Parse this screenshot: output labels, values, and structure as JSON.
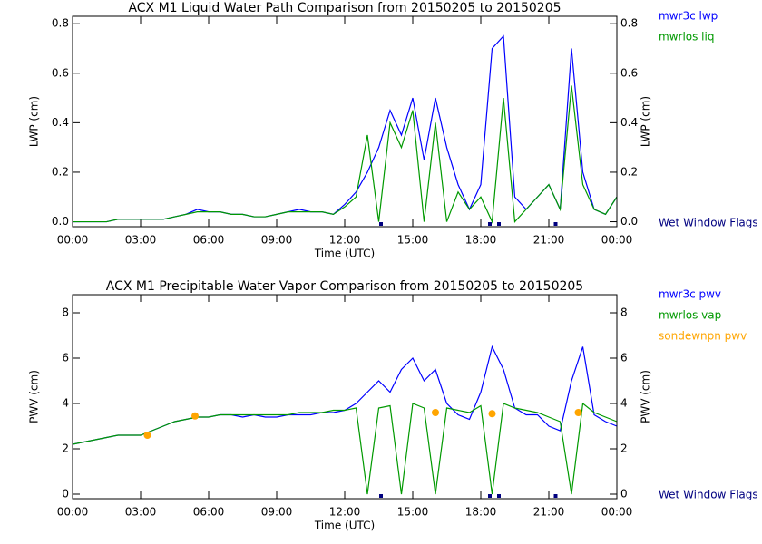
{
  "chart_data": [
    {
      "type": "line",
      "title": "ACX M1 Liquid Water Path Comparison from 20150205 to 20150205",
      "xlabel": "Time (UTC)",
      "ylabel": "LWP (cm)",
      "x": [
        0,
        0.5,
        1,
        1.5,
        2,
        2.5,
        3,
        3.5,
        4,
        4.5,
        5,
        5.5,
        6,
        6.5,
        7,
        7.5,
        8,
        8.5,
        9,
        9.5,
        10,
        10.5,
        11,
        11.5,
        12,
        12.5,
        13,
        13.5,
        14,
        14.5,
        15,
        15.5,
        16,
        16.5,
        17,
        17.5,
        18,
        18.5,
        19,
        19.5,
        20,
        20.5,
        21,
        21.5,
        22,
        22.5,
        23,
        23.5,
        24
      ],
      "xlim": [
        0,
        24
      ],
      "xticks": [
        {
          "value": 0,
          "label": "00:00"
        },
        {
          "value": 3,
          "label": "03:00"
        },
        {
          "value": 6,
          "label": "06:00"
        },
        {
          "value": 9,
          "label": "09:00"
        },
        {
          "value": 12,
          "label": "12:00"
        },
        {
          "value": 15,
          "label": "15:00"
        },
        {
          "value": 18,
          "label": "18:00"
        },
        {
          "value": 21,
          "label": "21:00"
        },
        {
          "value": 24,
          "label": "00:00"
        }
      ],
      "ylim": [
        -0.02,
        0.83
      ],
      "yticks": [
        {
          "value": 0,
          "label": "0.0"
        },
        0.2,
        0.4,
        0.6,
        0.8
      ],
      "series": [
        {
          "name": "mwr3c lwp",
          "color": "#0000ff",
          "values": [
            0.0,
            0.0,
            0.0,
            0.0,
            0.01,
            0.01,
            0.01,
            0.01,
            0.01,
            0.02,
            0.03,
            0.05,
            0.04,
            0.04,
            0.03,
            0.03,
            0.02,
            0.02,
            0.03,
            0.04,
            0.05,
            0.04,
            0.04,
            0.03,
            0.07,
            0.12,
            0.2,
            0.3,
            0.45,
            0.35,
            0.5,
            0.25,
            0.5,
            0.3,
            0.15,
            0.05,
            0.15,
            0.7,
            0.75,
            0.1,
            0.05,
            0.1,
            0.15,
            0.05,
            0.7,
            0.2,
            0.05,
            0.03,
            0.1
          ]
        },
        {
          "name": "mwrlos liq",
          "color": "#009900",
          "values": [
            0.0,
            0.0,
            0.0,
            0.0,
            0.01,
            0.01,
            0.01,
            0.01,
            0.01,
            0.02,
            0.03,
            0.04,
            0.04,
            0.04,
            0.03,
            0.03,
            0.02,
            0.02,
            0.03,
            0.04,
            0.04,
            0.04,
            0.04,
            0.03,
            0.06,
            0.1,
            0.35,
            0.0,
            0.4,
            0.3,
            0.45,
            0.0,
            0.4,
            0.0,
            0.12,
            0.05,
            0.1,
            0.0,
            0.5,
            0.0,
            0.05,
            0.1,
            0.15,
            0.05,
            0.55,
            0.15,
            0.05,
            0.03,
            0.1
          ]
        }
      ],
      "flags": {
        "name": "Wet Window Flags",
        "color": "#000080",
        "x": [
          13.6,
          18.4,
          18.8,
          21.3
        ]
      }
    },
    {
      "type": "line",
      "title": "ACX M1 Precipitable Water Vapor Comparison from 20150205 to 20150205",
      "xlabel": "Time (UTC)",
      "ylabel": "PWV (cm)",
      "x": [
        0,
        0.5,
        1,
        1.5,
        2,
        2.5,
        3,
        3.5,
        4,
        4.5,
        5,
        5.5,
        6,
        6.5,
        7,
        7.5,
        8,
        8.5,
        9,
        9.5,
        10,
        10.5,
        11,
        11.5,
        12,
        12.5,
        13,
        13.5,
        14,
        14.5,
        15,
        15.5,
        16,
        16.5,
        17,
        17.5,
        18,
        18.5,
        19,
        19.5,
        20,
        20.5,
        21,
        21.5,
        22,
        22.5,
        23,
        23.5,
        24
      ],
      "xlim": [
        0,
        24
      ],
      "xticks": [
        {
          "value": 0,
          "label": "00:00"
        },
        {
          "value": 3,
          "label": "03:00"
        },
        {
          "value": 6,
          "label": "06:00"
        },
        {
          "value": 9,
          "label": "09:00"
        },
        {
          "value": 12,
          "label": "12:00"
        },
        {
          "value": 15,
          "label": "15:00"
        },
        {
          "value": 18,
          "label": "18:00"
        },
        {
          "value": 21,
          "label": "21:00"
        },
        {
          "value": 24,
          "label": "00:00"
        }
      ],
      "ylim": [
        -0.2,
        8.8
      ],
      "yticks": [
        0,
        2,
        4,
        6,
        8
      ],
      "series": [
        {
          "name": "mwr3c pwv",
          "color": "#0000ff",
          "values": [
            2.2,
            2.3,
            2.4,
            2.5,
            2.6,
            2.6,
            2.6,
            2.8,
            3.0,
            3.2,
            3.3,
            3.4,
            3.4,
            3.5,
            3.5,
            3.4,
            3.5,
            3.4,
            3.4,
            3.5,
            3.5,
            3.5,
            3.6,
            3.6,
            3.7,
            4.0,
            4.5,
            5.0,
            4.5,
            5.5,
            6.0,
            5.0,
            5.5,
            4.0,
            3.5,
            3.3,
            4.5,
            6.5,
            5.5,
            3.8,
            3.5,
            3.5,
            3.0,
            2.8,
            5.0,
            6.5,
            3.5,
            3.2,
            3.0
          ]
        },
        {
          "name": "mwrlos vap",
          "color": "#009900",
          "values": [
            2.2,
            2.3,
            2.4,
            2.5,
            2.6,
            2.6,
            2.6,
            2.8,
            3.0,
            3.2,
            3.3,
            3.4,
            3.4,
            3.5,
            3.5,
            3.5,
            3.5,
            3.5,
            3.5,
            3.5,
            3.6,
            3.6,
            3.6,
            3.7,
            3.7,
            3.8,
            0.0,
            3.8,
            3.9,
            0.0,
            4.0,
            3.8,
            0.0,
            3.8,
            3.7,
            3.6,
            3.9,
            0.0,
            4.0,
            3.8,
            3.7,
            3.6,
            3.4,
            3.2,
            0.0,
            4.0,
            3.6,
            3.4,
            3.2
          ]
        },
        {
          "name": "sondewnpn pwv",
          "color": "#ffa500",
          "marker": "dot",
          "x": [
            3.3,
            5.4,
            16.0,
            18.5,
            22.3
          ],
          "values": [
            2.6,
            3.45,
            3.6,
            3.55,
            3.6
          ]
        }
      ],
      "flags": {
        "name": "Wet Window Flags",
        "color": "#000080",
        "x": [
          13.6,
          18.4,
          18.8,
          21.3
        ]
      }
    }
  ]
}
